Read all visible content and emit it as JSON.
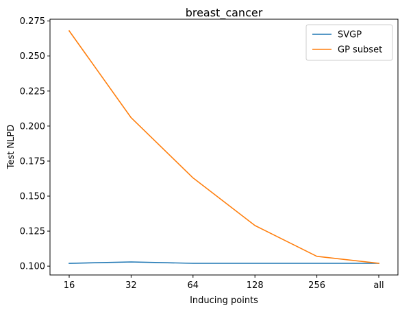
{
  "chart_data": {
    "type": "line",
    "title": "breast_cancer",
    "xlabel": "Inducing points",
    "ylabel": "Test NLPD",
    "categories": [
      "16",
      "32",
      "64",
      "128",
      "256",
      "all"
    ],
    "series": [
      {
        "name": "SVGP",
        "color": "#1f77b4",
        "values": [
          0.102,
          0.103,
          0.102,
          0.102,
          0.102,
          0.102
        ]
      },
      {
        "name": "GP subset",
        "color": "#ff7f0e",
        "values": [
          0.268,
          0.206,
          0.163,
          0.129,
          0.107,
          0.102
        ]
      }
    ],
    "yticks": [
      "0.100",
      "0.125",
      "0.150",
      "0.175",
      "0.200",
      "0.225",
      "0.250",
      "0.275"
    ],
    "ylim": [
      0.0937,
      0.2763
    ],
    "grid": false,
    "legend_position": "top-right"
  }
}
